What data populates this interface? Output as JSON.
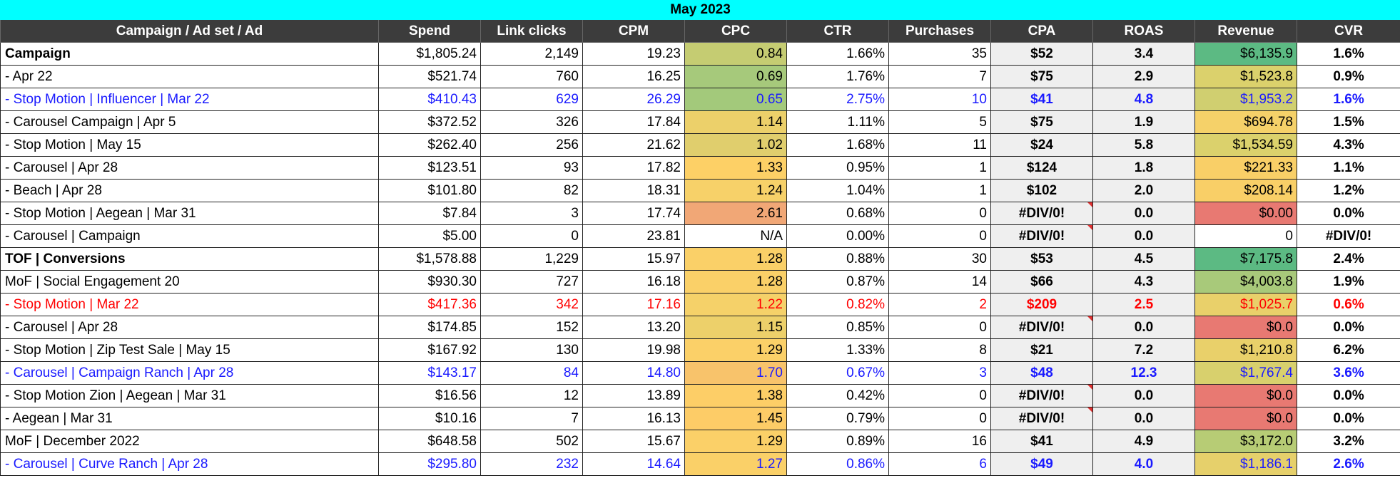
{
  "sheet": {
    "title": "May 2023",
    "headers": [
      "Campaign / Ad set / Ad",
      "Spend",
      "Link clicks",
      "CPM",
      "CPC",
      "CTR",
      "Purchases",
      "CPA",
      "ROAS",
      "Revenue",
      "CVR"
    ],
    "rows": [
      {
        "name": "Campaign",
        "spend": "$1,805.24",
        "clicks": "2,149",
        "cpm": "19.23",
        "cpc": "0.84",
        "ctr": "1.66%",
        "purchases": "35",
        "cpa": "$52",
        "roas": "3.4",
        "revenue": "$6,135.9",
        "cvr": "1.6%",
        "cpc_bg": "#c5cc72",
        "rev_bg": "#5cba83",
        "style": "bold-name",
        "note": false
      },
      {
        "name": "- Apr 22",
        "spend": "$521.74",
        "clicks": "760",
        "cpm": "16.25",
        "cpc": "0.69",
        "ctr": "1.76%",
        "purchases": "7",
        "cpa": "$75",
        "roas": "2.9",
        "revenue": "$1,523.8",
        "cvr": "0.9%",
        "cpc_bg": "#a6c97b",
        "rev_bg": "#dbd16c",
        "style": "",
        "note": false
      },
      {
        "name": "- Stop Motion | Influencer | Mar 22",
        "spend": "$410.43",
        "clicks": "629",
        "cpm": "26.29",
        "cpc": "0.65",
        "ctr": "2.75%",
        "purchases": "10",
        "cpa": "$41",
        "roas": "4.8",
        "revenue": "$1,953.2",
        "cvr": "1.6%",
        "cpc_bg": "#a3c97b",
        "rev_bg": "#d0cf70",
        "style": "blue",
        "note": false
      },
      {
        "name": "- Carousel Campaign | Apr 5",
        "spend": "$372.52",
        "clicks": "326",
        "cpm": "17.84",
        "cpc": "1.14",
        "ctr": "1.11%",
        "purchases": "5",
        "cpa": "$75",
        "roas": "1.9",
        "revenue": "$694.78",
        "cvr": "1.5%",
        "cpc_bg": "#ecd06a",
        "rev_bg": "#f5d169",
        "style": "",
        "note": false
      },
      {
        "name": "- Stop Motion | May 15",
        "spend": "$262.40",
        "clicks": "256",
        "cpm": "21.62",
        "cpc": "1.02",
        "ctr": "1.68%",
        "purchases": "11",
        "cpa": "$24",
        "roas": "5.8",
        "revenue": "$1,534.59",
        "cvr": "4.3%",
        "cpc_bg": "#e0ce6d",
        "rev_bg": "#dbd16c",
        "style": "",
        "note": false
      },
      {
        "name": "- Carousel | Apr 28",
        "spend": "$123.51",
        "clicks": "93",
        "cpm": "17.82",
        "cpc": "1.33",
        "ctr": "0.95%",
        "purchases": "1",
        "cpa": "$124",
        "roas": "1.8",
        "revenue": "$221.33",
        "cvr": "1.1%",
        "cpc_bg": "#fdd066",
        "rev_bg": "#f9cf67",
        "style": "",
        "note": false
      },
      {
        "name": "- Beach | Apr 28",
        "spend": "$101.80",
        "clicks": "82",
        "cpm": "18.31",
        "cpc": "1.24",
        "ctr": "1.04%",
        "purchases": "1",
        "cpa": "$102",
        "roas": "2.0",
        "revenue": "$208.14",
        "cvr": "1.2%",
        "cpc_bg": "#f7d169",
        "rev_bg": "#f9cf67",
        "style": "",
        "note": false
      },
      {
        "name": "- Stop Motion | Aegean | Mar 31",
        "spend": "$7.84",
        "clicks": "3",
        "cpm": "17.74",
        "cpc": "2.61",
        "ctr": "0.68%",
        "purchases": "0",
        "cpa": "#DIV/0!",
        "roas": "0.0",
        "revenue": "$0.00",
        "cvr": "0.0%",
        "cpc_bg": "#f1a776",
        "rev_bg": "#e87972",
        "style": "",
        "note": true
      },
      {
        "name": "- Carousel | Campaign",
        "spend": "$5.00",
        "clicks": "0",
        "cpm": "23.81",
        "cpc": "N/A",
        "ctr": "0.00%",
        "purchases": "0",
        "cpa": "#DIV/0!",
        "roas": "0.0",
        "revenue": "0",
        "cvr": "#DIV/0!",
        "cpc_bg": "#ffffff",
        "rev_bg": "#ffffff",
        "style": "",
        "note": true
      },
      {
        "name": "TOF | Conversions",
        "spend": "$1,578.88",
        "clicks": "1,229",
        "cpm": "15.97",
        "cpc": "1.28",
        "ctr": "0.88%",
        "purchases": "30",
        "cpa": "$53",
        "roas": "4.5",
        "revenue": "$7,175.8",
        "cvr": "2.4%",
        "cpc_bg": "#fad068",
        "rev_bg": "#5cba83",
        "style": "bold-name",
        "note": false
      },
      {
        "name": "MoF | Social Engagement 20",
        "spend": "$930.30",
        "clicks": "727",
        "cpm": "16.18",
        "cpc": "1.28",
        "ctr": "0.87%",
        "purchases": "14",
        "cpa": "$66",
        "roas": "4.3",
        "revenue": "$4,003.8",
        "cvr": "1.9%",
        "cpc_bg": "#fad068",
        "rev_bg": "#a8c97a",
        "style": "",
        "note": false
      },
      {
        "name": "- Stop Motion | Mar 22",
        "spend": "$417.36",
        "clicks": "342",
        "cpm": "17.16",
        "cpc": "1.22",
        "ctr": "0.82%",
        "purchases": "2",
        "cpa": "$209",
        "roas": "2.5",
        "revenue": "$1,025.7",
        "cvr": "0.6%",
        "cpc_bg": "#f5d169",
        "rev_bg": "#e9d06a",
        "style": "red",
        "note": false
      },
      {
        "name": "- Carousel | Apr 28",
        "spend": "$174.85",
        "clicks": "152",
        "cpm": "13.20",
        "cpc": "1.15",
        "ctr": "0.85%",
        "purchases": "0",
        "cpa": "#DIV/0!",
        "roas": "0.0",
        "revenue": "$0.0",
        "cvr": "0.0%",
        "cpc_bg": "#edd06a",
        "rev_bg": "#e87972",
        "style": "",
        "note": true
      },
      {
        "name": "- Stop Motion | Zip Test Sale | May 15",
        "spend": "$167.92",
        "clicks": "130",
        "cpm": "19.98",
        "cpc": "1.29",
        "ctr": "1.33%",
        "purchases": "8",
        "cpa": "$21",
        "roas": "7.2",
        "revenue": "$1,210.8",
        "cvr": "6.2%",
        "cpc_bg": "#fbd068",
        "rev_bg": "#e9d06a",
        "style": "",
        "note": false
      },
      {
        "name": "- Carousel | Campaign Ranch | Apr 28",
        "spend": "$143.17",
        "clicks": "84",
        "cpm": "14.80",
        "cpc": "1.70",
        "ctr": "0.67%",
        "purchases": "3",
        "cpa": "$48",
        "roas": "12.3",
        "revenue": "$1,767.4",
        "cvr": "3.6%",
        "cpc_bg": "#f8c36b",
        "rev_bg": "#d8d06d",
        "style": "blue",
        "note": false
      },
      {
        "name": "- Stop Motion Zion | Aegean | Mar 31",
        "spend": "$16.56",
        "clicks": "12",
        "cpm": "13.89",
        "cpc": "1.38",
        "ctr": "0.42%",
        "purchases": "0",
        "cpa": "#DIV/0!",
        "roas": "0.0",
        "revenue": "$0.0",
        "cvr": "0.0%",
        "cpc_bg": "#fdce67",
        "rev_bg": "#e87972",
        "style": "",
        "note": true
      },
      {
        "name": "- Aegean | Mar 31",
        "spend": "$10.16",
        "clicks": "7",
        "cpm": "16.13",
        "cpc": "1.45",
        "ctr": "0.79%",
        "purchases": "0",
        "cpa": "#DIV/0!",
        "roas": "0.0",
        "revenue": "$0.0",
        "cvr": "0.0%",
        "cpc_bg": "#fdcc67",
        "rev_bg": "#e87972",
        "style": "",
        "note": true
      },
      {
        "name": "MoF | December 2022",
        "spend": "$648.58",
        "clicks": "502",
        "cpm": "15.67",
        "cpc": "1.29",
        "ctr": "0.89%",
        "purchases": "16",
        "cpa": "$41",
        "roas": "4.9",
        "revenue": "$3,172.0",
        "cvr": "3.2%",
        "cpc_bg": "#fbd068",
        "rev_bg": "#b7cc75",
        "style": "",
        "note": false
      },
      {
        "name": "- Carousel | Curve Ranch | Apr 28",
        "spend": "$295.80",
        "clicks": "232",
        "cpm": "14.64",
        "cpc": "1.27",
        "ctr": "0.86%",
        "purchases": "6",
        "cpa": "$49",
        "roas": "4.0",
        "revenue": "$1,186.1",
        "cvr": "2.6%",
        "cpc_bg": "#fad068",
        "rev_bg": "#e6d06b",
        "style": "blue",
        "note": false
      }
    ]
  }
}
